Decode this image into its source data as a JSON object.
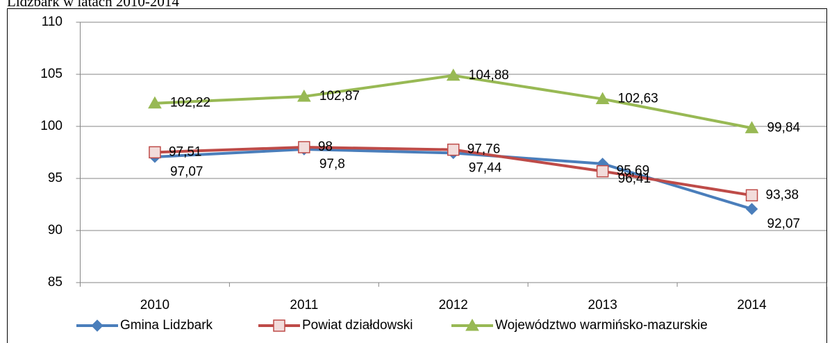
{
  "chart_data": {
    "type": "line",
    "title": "Lidzbark w latach 2010-2014",
    "categories": [
      "2010",
      "2011",
      "2012",
      "2013",
      "2014"
    ],
    "series": [
      {
        "name": "Gmina Lidzbark",
        "color": "#4a7ebb",
        "marker": "diamond",
        "values": [
          97.07,
          97.8,
          97.44,
          96.41,
          92.07
        ],
        "value_labels": [
          "97,07",
          "97,8",
          "97,44",
          "96,41",
          "92,07"
        ]
      },
      {
        "name": "Powiat działdowski",
        "color": "#be4b48",
        "marker": "square",
        "values": [
          97.51,
          98,
          97.76,
          95.69,
          93.38
        ],
        "value_labels": [
          "97,51",
          "98",
          "97,76",
          "95,69",
          "93,38"
        ]
      },
      {
        "name": "Województwo warmińsko-mazurskie",
        "color": "#98b954",
        "marker": "triangle",
        "values": [
          102.22,
          102.87,
          104.88,
          102.63,
          99.84
        ],
        "value_labels": [
          "102,22",
          "102,87",
          "104,88",
          "102,63",
          "99,84"
        ]
      }
    ],
    "ylim": [
      85,
      110
    ],
    "yticks": [
      85,
      90,
      95,
      100,
      105,
      110
    ],
    "grid": true,
    "legend": "bottom"
  }
}
